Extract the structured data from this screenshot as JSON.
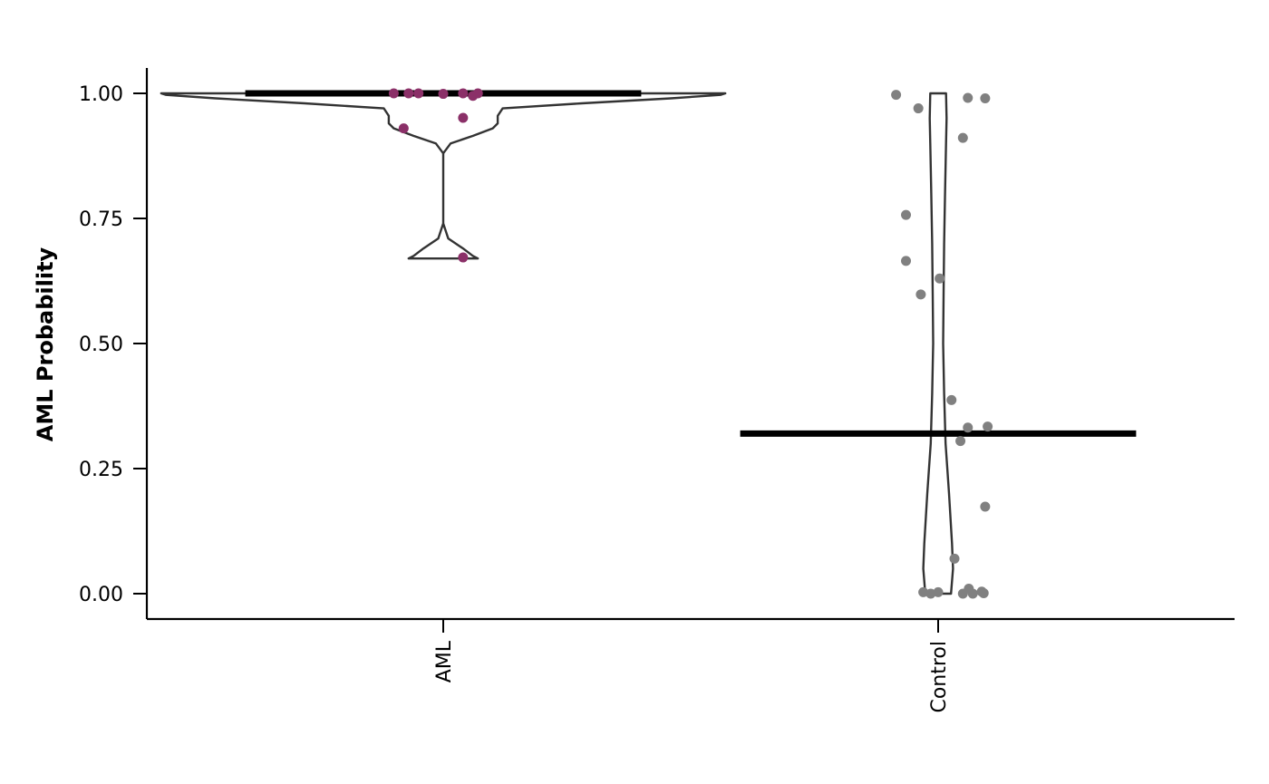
{
  "chart_data": {
    "type": "violin",
    "ylabel": "AML Probability",
    "xlabel": "",
    "ylim": [
      -0.05,
      1.05
    ],
    "yticks": [
      0.0,
      0.25,
      0.5,
      0.75,
      1.0
    ],
    "ytick_labels": [
      "0.00",
      "0.25",
      "0.50",
      "0.75",
      "1.00"
    ],
    "categories": [
      "AML",
      "Control"
    ],
    "colors": {
      "AML": "#8b3068",
      "Control": "#808080"
    },
    "series": [
      {
        "category": "AML",
        "median": 1.0,
        "violin_profile": [
          [
            0.67,
            0.07
          ],
          [
            0.675,
            0.06
          ],
          [
            0.69,
            0.04
          ],
          [
            0.71,
            0.01
          ],
          [
            0.74,
            0.0
          ],
          [
            0.8,
            0.0
          ],
          [
            0.88,
            0.0
          ],
          [
            0.9,
            0.015
          ],
          [
            0.915,
            0.06
          ],
          [
            0.93,
            0.1
          ],
          [
            0.94,
            0.11
          ],
          [
            0.955,
            0.11
          ],
          [
            0.97,
            0.12
          ],
          [
            0.98,
            0.28
          ],
          [
            0.99,
            0.46
          ],
          [
            0.997,
            0.56
          ],
          [
            1.0,
            0.57
          ]
        ],
        "points": [
          {
            "x": -0.1,
            "y": 1.0
          },
          {
            "x": -0.07,
            "y": 1.0
          },
          {
            "x": -0.05,
            "y": 1.0
          },
          {
            "x": 0.0,
            "y": 0.999
          },
          {
            "x": 0.04,
            "y": 1.0
          },
          {
            "x": 0.06,
            "y": 0.995
          },
          {
            "x": 0.07,
            "y": 1.0
          },
          {
            "x": 0.04,
            "y": 0.951
          },
          {
            "x": -0.08,
            "y": 0.93
          },
          {
            "x": 0.04,
            "y": 0.672
          }
        ]
      },
      {
        "category": "Control",
        "median": 0.32,
        "violin_profile": [
          [
            0.0,
            0.026
          ],
          [
            0.05,
            0.03
          ],
          [
            0.1,
            0.028
          ],
          [
            0.2,
            0.022
          ],
          [
            0.3,
            0.015
          ],
          [
            0.4,
            0.012
          ],
          [
            0.5,
            0.01
          ],
          [
            0.6,
            0.011
          ],
          [
            0.7,
            0.012
          ],
          [
            0.8,
            0.014
          ],
          [
            0.9,
            0.016
          ],
          [
            0.95,
            0.017
          ],
          [
            1.0,
            0.016
          ]
        ],
        "points": [
          {
            "x": -0.085,
            "y": 0.997
          },
          {
            "x": -0.04,
            "y": 0.97
          },
          {
            "x": 0.06,
            "y": 0.991
          },
          {
            "x": 0.095,
            "y": 0.99
          },
          {
            "x": 0.05,
            "y": 0.911
          },
          {
            "x": -0.065,
            "y": 0.757
          },
          {
            "x": -0.065,
            "y": 0.665
          },
          {
            "x": 0.003,
            "y": 0.63
          },
          {
            "x": -0.035,
            "y": 0.598
          },
          {
            "x": 0.027,
            "y": 0.387
          },
          {
            "x": 0.06,
            "y": 0.332
          },
          {
            "x": 0.1,
            "y": 0.334
          },
          {
            "x": 0.045,
            "y": 0.305
          },
          {
            "x": 0.095,
            "y": 0.174
          },
          {
            "x": 0.033,
            "y": 0.07
          },
          {
            "x": -0.03,
            "y": 0.003
          },
          {
            "x": -0.015,
            "y": 0.0
          },
          {
            "x": 0.0,
            "y": 0.003
          },
          {
            "x": 0.05,
            "y": 0.0
          },
          {
            "x": 0.062,
            "y": 0.01
          },
          {
            "x": 0.07,
            "y": 0.0
          },
          {
            "x": 0.088,
            "y": 0.004
          },
          {
            "x": 0.092,
            "y": 0.001
          }
        ]
      }
    ]
  }
}
